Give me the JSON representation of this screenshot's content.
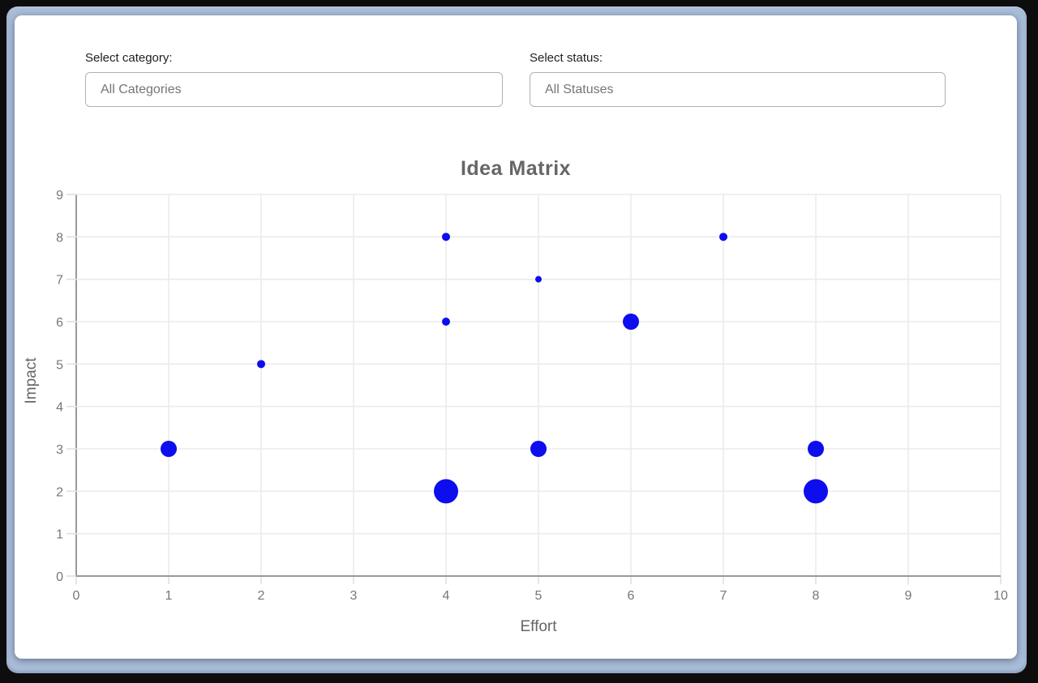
{
  "window": {
    "frame_color": "#a9bdd9",
    "outer_border_color": "#0d0d0d",
    "card_color": "#ffffff"
  },
  "filters": {
    "category": {
      "label": "Select category:",
      "value": "All Categories"
    },
    "status": {
      "label": "Select status:",
      "value": "All Statuses"
    }
  },
  "chart_data": {
    "type": "scatter",
    "subtype": "bubble",
    "title": "Idea Matrix",
    "xlabel": "Effort",
    "ylabel": "Impact",
    "xlim": [
      0,
      10
    ],
    "ylim": [
      0,
      9
    ],
    "x_ticks": [
      0,
      1,
      2,
      3,
      4,
      5,
      6,
      7,
      8,
      9,
      10
    ],
    "y_ticks": [
      0,
      1,
      2,
      3,
      4,
      5,
      6,
      7,
      8,
      9
    ],
    "grid": true,
    "legend": "none",
    "colors": {
      "point": "#0d0dee",
      "grid": "#ebebeb",
      "zero_line": "#999999",
      "tick_mark": "#e0e0e0",
      "tick_text": "#777777",
      "title_text": "#666666",
      "axis_label_text": "#666666"
    },
    "points": [
      {
        "x": 1,
        "y": 3,
        "r": 10
      },
      {
        "x": 2,
        "y": 5,
        "r": 5
      },
      {
        "x": 4,
        "y": 2,
        "r": 15
      },
      {
        "x": 4,
        "y": 6,
        "r": 5
      },
      {
        "x": 4,
        "y": 8,
        "r": 5
      },
      {
        "x": 5,
        "y": 3,
        "r": 10
      },
      {
        "x": 5,
        "y": 7,
        "r": 4
      },
      {
        "x": 6,
        "y": 6,
        "r": 10
      },
      {
        "x": 7,
        "y": 8,
        "r": 5
      },
      {
        "x": 8,
        "y": 2,
        "r": 15
      },
      {
        "x": 8,
        "y": 3,
        "r": 10
      }
    ]
  }
}
